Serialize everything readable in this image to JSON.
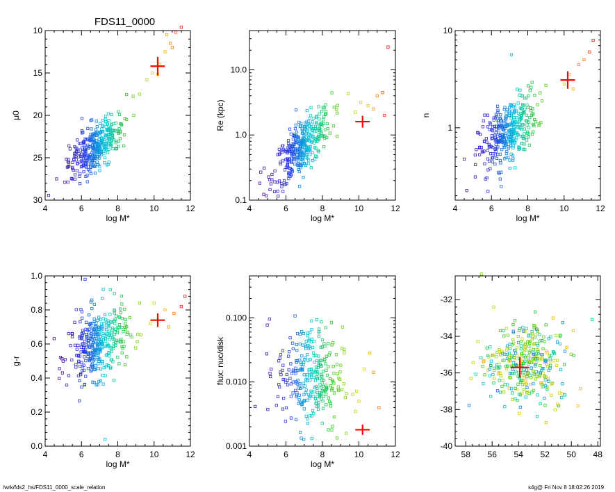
{
  "footer": {
    "left": "/wrk/fds2_hs/FDS11_0000_scale_relation",
    "right": "s4g@  Fri Nov  8 18:02:26 2019"
  },
  "colors": {
    "marker_cross": "#ff0000",
    "axes": "#000000"
  },
  "chart_data": [
    {
      "id": "mu0",
      "type": "scatter",
      "title": "FDS11_0000",
      "xlabel": "log M*",
      "ylabel": "μ0",
      "xlim": [
        4,
        12
      ],
      "ylim": [
        30,
        10
      ],
      "yscale": "linear",
      "yreverse": true,
      "xticks": [
        4,
        6,
        8,
        10,
        12
      ],
      "yticks": [
        10,
        15,
        20,
        25,
        30
      ],
      "yticklabels": [
        "10",
        "15",
        "20",
        "25",
        "30"
      ],
      "cloud": {
        "x0": 6.8,
        "y0": 23.7,
        "sx": 0.75,
        "sy": 1.35,
        "slope": 1.6,
        "n": 360,
        "tail": [
          [
            9.2,
            17.5
          ],
          [
            9.6,
            15.8
          ],
          [
            10.3,
            14.0
          ],
          [
            10.6,
            12.5
          ],
          [
            10.9,
            11.5
          ],
          [
            11.2,
            10.2
          ],
          [
            11.5,
            9.6
          ],
          [
            11.0,
            12.0
          ],
          [
            10.2,
            15.2
          ],
          [
            9.9,
            15.0
          ],
          [
            10.7,
            10.5
          ]
        ]
      },
      "highlight": {
        "x": 10.2,
        "y": 14.2,
        "xerr": 0.4,
        "yerr": 1.1
      },
      "grid": false,
      "legend": "none"
    },
    {
      "id": "re",
      "type": "scatter",
      "xlabel": "log M*",
      "ylabel": "Re (kpc)",
      "xlim": [
        4,
        12
      ],
      "ylim": [
        0.1,
        40
      ],
      "yscale": "log",
      "xticks": [
        4,
        6,
        8,
        10,
        12
      ],
      "yticks": [
        0.1,
        1.0,
        10.0
      ],
      "yticklabels": [
        "0.1",
        "1.0",
        "10.0"
      ],
      "cloud": {
        "x0": 6.9,
        "y0": -0.18,
        "sx": 0.8,
        "sy": 0.2,
        "slope": 0.26,
        "n": 360,
        "tail": [
          [
            10.5,
            0.45
          ],
          [
            11.0,
            0.6
          ],
          [
            11.3,
            0.65
          ],
          [
            11.6,
            1.35
          ],
          [
            10.8,
            0.4
          ],
          [
            11.4,
            0.3
          ],
          [
            9.8,
            0.35
          ],
          [
            10.1,
            0.5
          ]
        ]
      },
      "highlight": {
        "x": 10.2,
        "y": 1.6,
        "xerr": 0.4,
        "yerr_log": 0.09
      },
      "grid": false,
      "legend": "none"
    },
    {
      "id": "n",
      "type": "scatter",
      "xlabel": "log M*",
      "ylabel": "n",
      "xlim": [
        4,
        12
      ],
      "ylim": [
        0.18,
        10
      ],
      "yscale": "log",
      "xticks": [
        4,
        6,
        8,
        10,
        12
      ],
      "yticks": [
        1,
        10
      ],
      "yticklabels": [
        "1",
        "10"
      ],
      "cloud": {
        "x0": 6.9,
        "y0": -0.05,
        "sx": 0.8,
        "sy": 0.16,
        "slope": 0.14,
        "n": 360,
        "tail": [
          [
            10.3,
            0.55
          ],
          [
            10.8,
            0.65
          ],
          [
            11.1,
            0.7
          ],
          [
            11.4,
            0.78
          ],
          [
            11.6,
            0.9
          ],
          [
            10.5,
            0.4
          ],
          [
            10.0,
            0.45
          ],
          [
            7.1,
            0.75
          ]
        ]
      },
      "highlight": {
        "x": 10.2,
        "y": 3.1,
        "xerr": 0.4,
        "yerr_log": 0.09
      },
      "grid": false,
      "legend": "none"
    },
    {
      "id": "gr",
      "type": "scatter",
      "xlabel": "log M*",
      "ylabel": "g-r",
      "xlim": [
        4,
        12
      ],
      "ylim": [
        0.0,
        1.0
      ],
      "yscale": "linear",
      "xticks": [
        4,
        6,
        8,
        10,
        12
      ],
      "yticks": [
        0.0,
        0.2,
        0.4,
        0.6,
        0.8,
        1.0
      ],
      "yticklabels": [
        "0.0",
        "0.2",
        "0.4",
        "0.6",
        "0.8",
        "1.0"
      ],
      "cloud": {
        "x0": 6.9,
        "y0": 0.6,
        "sx": 0.8,
        "sy": 0.1,
        "slope": 0.04,
        "n": 360,
        "tail": [
          [
            6.2,
            0.98
          ],
          [
            7.2,
            0.92
          ],
          [
            10.0,
            0.84
          ],
          [
            10.6,
            0.8
          ],
          [
            11.1,
            0.78
          ],
          [
            11.5,
            0.82
          ],
          [
            11.7,
            0.88
          ],
          [
            9.2,
            0.84
          ],
          [
            9.8,
            0.72
          ],
          [
            10.8,
            0.7
          ],
          [
            7.3,
            0.04
          ]
        ]
      },
      "highlight": {
        "x": 10.2,
        "y": 0.74,
        "xerr": 0.4,
        "yerr": 0.04
      },
      "grid": false,
      "legend": "none"
    },
    {
      "id": "flux",
      "type": "scatter",
      "xlabel": "log M*",
      "ylabel": "flux: nuc/disk",
      "xlim": [
        4,
        12
      ],
      "ylim": [
        0.001,
        0.45
      ],
      "yscale": "log",
      "xticks": [
        4,
        6,
        8,
        10,
        12
      ],
      "yticks": [
        0.001,
        0.01,
        0.1
      ],
      "yticklabels": [
        "0.001",
        "0.010",
        "0.100"
      ],
      "cloud": {
        "x0": 7.3,
        "y0": -1.9,
        "sx": 0.9,
        "sy": 0.42,
        "slope": -0.05,
        "n": 300,
        "tail": [
          [
            10.3,
            -1.8
          ],
          [
            10.8,
            -1.85
          ],
          [
            11.1,
            -2.4
          ],
          [
            10.0,
            -2.3
          ],
          [
            10.6,
            -1.55
          ],
          [
            9.3,
            -2.8
          ]
        ]
      },
      "highlight": {
        "x": 10.2,
        "y": 0.0018,
        "xerr": 0.4,
        "yerr_log": 0.08
      },
      "grid": false,
      "legend": "none"
    },
    {
      "id": "coords",
      "type": "scatter",
      "xlim": [
        58.8,
        47.8
      ],
      "ylim": [
        -40,
        -30.7
      ],
      "yscale": "linear",
      "xreverse": true,
      "xticks": [
        58,
        56,
        54,
        52,
        50,
        48
      ],
      "yticks": [
        -40,
        -38,
        -36,
        -34,
        -32
      ],
      "xticklabels": [
        "58",
        "56",
        "54",
        "52",
        "50",
        "48"
      ],
      "yticklabels": [
        "-40",
        "-38",
        "-36",
        "-34",
        "-32"
      ],
      "cloud": {
        "x0": 53.5,
        "y0": -35.4,
        "sx": 1.5,
        "sy": 1.1,
        "slope": 0,
        "n": 360,
        "tail": [
          [
            56.8,
            -30.6
          ],
          [
            50.5,
            -37.2
          ],
          [
            49.5,
            -37.8
          ],
          [
            51.5,
            -36.6
          ]
        ]
      },
      "highlight": {
        "x": 53.9,
        "y": -35.7,
        "xerr": 0.7,
        "yerr": 0.55
      },
      "grid": false,
      "legend": "none"
    }
  ]
}
